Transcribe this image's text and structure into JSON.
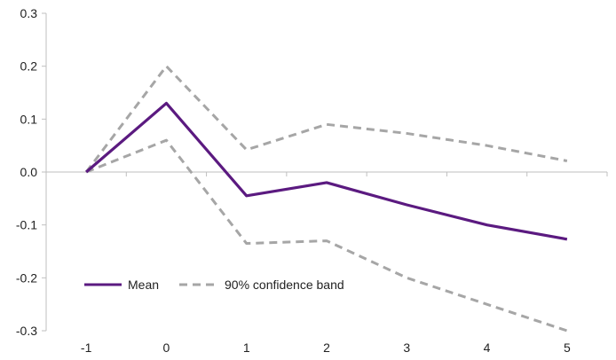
{
  "chart_data": {
    "type": "line",
    "title": "",
    "xlabel": "",
    "ylabel": "",
    "x": [
      -1,
      0,
      1,
      2,
      3,
      4,
      5
    ],
    "x_tick_labels": [
      "-1",
      "0",
      "1",
      "2",
      "3",
      "4",
      "5"
    ],
    "y_tick_labels": [
      "0.3",
      "0.2",
      "0.1",
      "0.0",
      "-0.1",
      "-0.2",
      "-0.3"
    ],
    "ylim": [
      -0.3,
      0.3
    ],
    "grid": false,
    "legend_position": "bottom-left",
    "series": [
      {
        "name": "Mean",
        "color": "#5b1a80",
        "dash": false,
        "values": [
          0.0,
          0.13,
          -0.045,
          -0.02,
          -0.062,
          -0.1,
          -0.127
        ]
      },
      {
        "name": "90% confidence band",
        "color": "#a6a6a6",
        "dash": true,
        "values": [
          0.0,
          0.2,
          0.042,
          0.09,
          0.073,
          0.05,
          0.021
        ]
      },
      {
        "name": "",
        "color": "#a6a6a6",
        "dash": true,
        "values": [
          0.0,
          0.06,
          -0.135,
          -0.13,
          -0.2,
          -0.25,
          -0.3
        ]
      }
    ],
    "legend": [
      {
        "label": "Mean",
        "color": "#5b1a80",
        "dash": false
      },
      {
        "label": "90% confidence band",
        "color": "#a6a6a6",
        "dash": true
      }
    ]
  }
}
